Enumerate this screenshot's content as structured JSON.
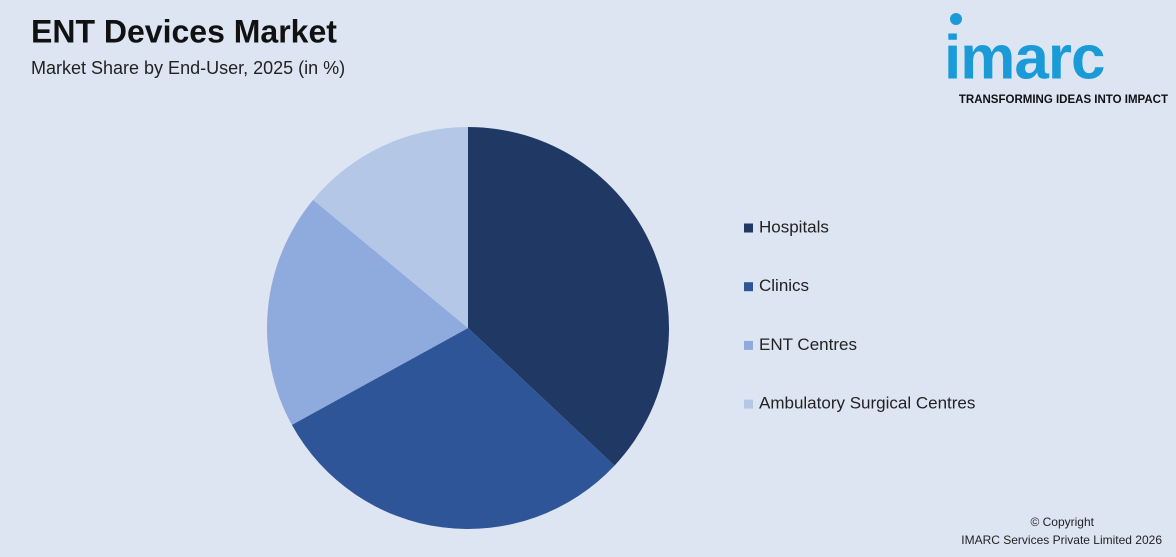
{
  "chart_data": {
    "type": "pie",
    "title": "ENT Devices Market",
    "subtitle": "Market Share by End-User, 2025 (in %)",
    "categories": [
      "Hospitals",
      "Clinics",
      "ENT Centres",
      "Ambulatory Surgical Centres"
    ],
    "values": [
      37,
      30,
      19,
      14
    ],
    "colors": [
      "#1f3864",
      "#2e5597",
      "#8faadc",
      "#b4c7e7"
    ],
    "legend": "right"
  },
  "logo": {
    "name": "imarc",
    "tagline": "TRANSFORMING IDEAS INTO IMPACT"
  },
  "footer": {
    "copyright": "© Copyright",
    "company": "IMARC Services Private Limited 2026"
  }
}
